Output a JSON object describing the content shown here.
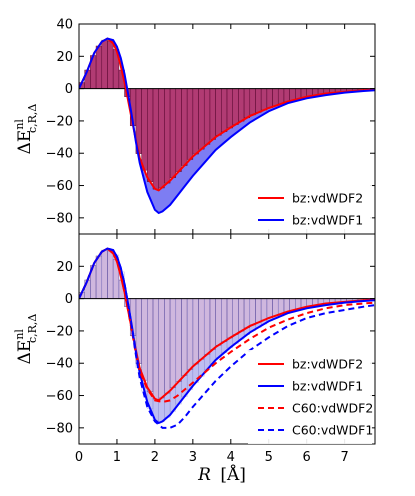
{
  "chart_data": {
    "type": "line",
    "xlabel_var": "R",
    "xlabel_unit": "[Å]",
    "ylabel_main": "ΔE",
    "ylabel_sup": "nl",
    "ylabel_sub": "c,R,Δ",
    "xlim": [
      0,
      7.8
    ],
    "xticks": [
      "0",
      "1",
      "2",
      "3",
      "4",
      "5",
      "6",
      "7"
    ],
    "grid": false,
    "panels": [
      {
        "ylim": [
          -90,
          40
        ],
        "yticks": [
          "40",
          "20",
          "0",
          "−20",
          "−40",
          "−60",
          "−80"
        ],
        "legend_position": "lower right",
        "series": [
          {
            "name": "bz:vdWDF2",
            "color": "#ff0000",
            "style": "solid",
            "x": [
              0.0,
              0.2,
              0.4,
              0.6,
              0.75,
              0.9,
              1.0,
              1.1,
              1.2,
              1.3,
              1.4,
              1.5,
              1.6,
              1.8,
              2.0,
              2.1,
              2.2,
              2.4,
              2.6,
              2.8,
              3.0,
              3.3,
              3.6,
              4.0,
              4.5,
              5.0,
              5.5,
              6.0,
              6.5,
              7.0,
              7.5,
              7.8
            ],
            "y": [
              0,
              10,
              22,
              29,
              31,
              28,
              23,
              14,
              4,
              -8,
              -20,
              -32,
              -43,
              -55,
              -62,
              -63,
              -61,
              -57,
              -52,
              -47,
              -42,
              -36,
              -30,
              -24,
              -17,
              -12,
              -8,
              -5,
              -3,
              -2,
              -1,
              -0.5
            ]
          },
          {
            "name": "bz:vdWDF1",
            "color": "#0000ff",
            "style": "solid",
            "x": [
              0.0,
              0.2,
              0.4,
              0.6,
              0.75,
              0.9,
              1.0,
              1.1,
              1.2,
              1.3,
              1.4,
              1.5,
              1.6,
              1.8,
              2.0,
              2.1,
              2.2,
              2.4,
              2.6,
              2.8,
              3.0,
              3.3,
              3.6,
              4.0,
              4.5,
              5.0,
              5.5,
              6.0,
              6.5,
              7.0,
              7.5,
              7.8
            ],
            "y": [
              0,
              10,
              22,
              29,
              31,
              30,
              26,
              19,
              9,
              -4,
              -18,
              -33,
              -46,
              -64,
              -75,
              -77,
              -76,
              -72,
              -66,
              -60,
              -54,
              -46,
              -38,
              -30,
              -21,
              -14,
              -9,
              -6,
              -4,
              -2.5,
              -1.5,
              -1
            ]
          }
        ]
      },
      {
        "ylim": [
          -90,
          40
        ],
        "yticks": [
          "20",
          "0",
          "−20",
          "−40",
          "−60",
          "−80"
        ],
        "legend_position": "lower right",
        "series": [
          {
            "name": "bz:vdWDF2",
            "color": "#ff0000",
            "style": "solid",
            "x": [
              0.0,
              0.2,
              0.4,
              0.6,
              0.75,
              0.9,
              1.0,
              1.1,
              1.2,
              1.3,
              1.4,
              1.5,
              1.6,
              1.8,
              2.0,
              2.1,
              2.2,
              2.4,
              2.6,
              2.8,
              3.0,
              3.3,
              3.6,
              4.0,
              4.5,
              5.0,
              5.5,
              6.0,
              6.5,
              7.0,
              7.5,
              7.8
            ],
            "y": [
              0,
              10,
              22,
              29,
              31,
              28,
              23,
              14,
              4,
              -8,
              -20,
              -32,
              -43,
              -55,
              -62,
              -63,
              -61,
              -57,
              -52,
              -47,
              -42,
              -36,
              -30,
              -24,
              -17,
              -12,
              -8,
              -5,
              -3,
              -2,
              -1,
              -0.5
            ]
          },
          {
            "name": "bz:vdWDF1",
            "color": "#0000ff",
            "style": "solid",
            "x": [
              0.0,
              0.2,
              0.4,
              0.6,
              0.75,
              0.9,
              1.0,
              1.1,
              1.2,
              1.3,
              1.4,
              1.5,
              1.6,
              1.8,
              2.0,
              2.1,
              2.2,
              2.4,
              2.6,
              2.8,
              3.0,
              3.3,
              3.6,
              4.0,
              4.5,
              5.0,
              5.5,
              6.0,
              6.5,
              7.0,
              7.5,
              7.8
            ],
            "y": [
              0,
              10,
              22,
              29,
              31,
              30,
              26,
              19,
              9,
              -4,
              -18,
              -33,
              -46,
              -64,
              -75,
              -77,
              -76,
              -72,
              -66,
              -60,
              -54,
              -46,
              -38,
              -30,
              -21,
              -14,
              -9,
              -6,
              -4,
              -2.5,
              -1.5,
              -1
            ]
          },
          {
            "name": "C60:vdWDF2",
            "color": "#ff0000",
            "style": "dashed",
            "x": [
              0.0,
              0.2,
              0.4,
              0.6,
              0.75,
              0.9,
              1.0,
              1.1,
              1.2,
              1.3,
              1.4,
              1.5,
              1.6,
              1.8,
              2.0,
              2.2,
              2.4,
              2.6,
              2.8,
              3.0,
              3.3,
              3.6,
              4.0,
              4.5,
              5.0,
              5.5,
              6.0,
              6.5,
              7.0,
              7.5,
              7.8
            ],
            "y": [
              0,
              10,
              22,
              29,
              31,
              28,
              23,
              15,
              4,
              -8,
              -21,
              -34,
              -45,
              -56,
              -63,
              -64,
              -63,
              -60,
              -56,
              -52,
              -46,
              -40,
              -33,
              -25,
              -18,
              -13,
              -9,
              -6,
              -4,
              -3,
              -2.5
            ]
          },
          {
            "name": "C60:vdWDF1",
            "color": "#0000ff",
            "style": "dashed",
            "x": [
              0.0,
              0.2,
              0.4,
              0.6,
              0.75,
              0.9,
              1.0,
              1.1,
              1.2,
              1.3,
              1.4,
              1.5,
              1.6,
              1.8,
              2.0,
              2.2,
              2.4,
              2.6,
              2.8,
              3.0,
              3.3,
              3.6,
              4.0,
              4.5,
              5.0,
              5.5,
              6.0,
              6.5,
              7.0,
              7.5,
              7.8
            ],
            "y": [
              0,
              10,
              22,
              29,
              31,
              30,
              26,
              19,
              9,
              -4,
              -19,
              -35,
              -49,
              -67,
              -76,
              -80,
              -80,
              -78,
              -73,
              -67,
              -59,
              -51,
              -42,
              -32,
              -24,
              -17,
              -12,
              -9,
              -7,
              -5,
              -4
            ]
          }
        ]
      }
    ]
  }
}
